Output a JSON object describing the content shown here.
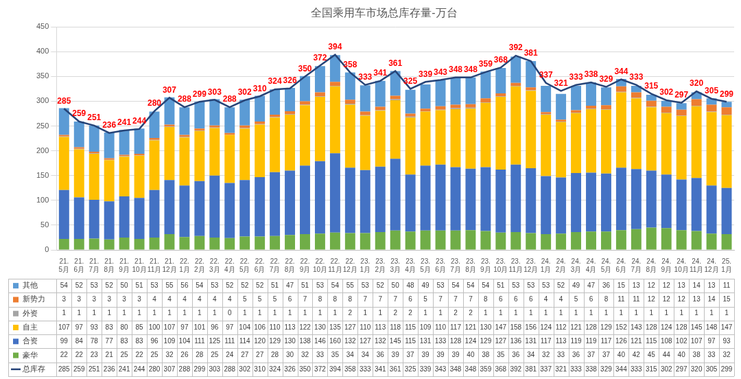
{
  "chart_data": {
    "type": "bar",
    "title": "全国乘用车市场总库存量-万台",
    "stacked": true,
    "grid": true,
    "categories": [
      "21.5月",
      "21.6月",
      "21.7月",
      "21.8月",
      "21.9月",
      "21.10月",
      "21.11月",
      "21.12月",
      "22.1月",
      "22.2月",
      "22.3月",
      "22.4月",
      "22.5月",
      "22.6月",
      "22.7月",
      "22.8月",
      "22.9月",
      "22.10月",
      "22.11月",
      "22.12月",
      "23.1月",
      "23.2月",
      "23.3月",
      "23.4月",
      "23.5月",
      "23.6月",
      "23.7月",
      "23.8月",
      "23.9月",
      "23.10月",
      "23.11月",
      "23.12月",
      "24.1月",
      "24.2月",
      "24.3月",
      "24.4月",
      "24.5月",
      "24.6月",
      "24.7月",
      "24.8月",
      "24.9月",
      "24.10月",
      "24.11月",
      "24.12月",
      "25.1月"
    ],
    "ylim": [
      0,
      450
    ],
    "yticks": [
      0,
      50,
      100,
      150,
      200,
      250,
      300,
      350,
      400,
      450
    ],
    "series": [
      {
        "name": "豪华",
        "color": "#70ad47",
        "values": [
          22,
          22,
          23,
          21,
          25,
          22,
          25,
          32,
          26,
          28,
          25,
          24,
          27,
          27,
          28,
          30,
          32,
          33,
          35,
          34,
          34,
          36,
          39,
          37,
          39,
          39,
          39,
          40,
          38,
          35,
          36,
          34,
          32,
          33,
          36,
          37,
          37,
          40,
          42,
          45,
          44,
          40,
          38,
          33,
          32
        ]
      },
      {
        "name": "合资",
        "color": "#4472c4",
        "values": [
          99,
          84,
          78,
          77,
          83,
          83,
          96,
          109,
          104,
          111,
          125,
          111,
          114,
          120,
          129,
          130,
          138,
          146,
          160,
          132,
          127,
          132,
          145,
          115,
          131,
          133,
          128,
          124,
          129,
          127,
          136,
          131,
          117,
          113,
          119,
          119,
          117,
          126,
          121,
          115,
          108,
          102,
          107,
          97,
          93
        ]
      },
      {
        "name": "自主",
        "color": "#ffc000",
        "values": [
          107,
          97,
          93,
          83,
          80,
          85,
          100,
          107,
          97,
          101,
          96,
          97,
          104,
          106,
          110,
          113,
          122,
          130,
          135,
          127,
          110,
          113,
          118,
          115,
          109,
          110,
          117,
          121,
          130,
          147,
          158,
          156,
          124,
          112,
          121,
          128,
          129,
          152,
          143,
          128,
          124,
          128,
          145,
          148,
          147
        ]
      },
      {
        "name": "外资",
        "color": "#a5a5a5",
        "values": [
          1,
          1,
          1,
          1,
          1,
          1,
          1,
          1,
          1,
          1,
          1,
          0,
          1,
          1,
          1,
          1,
          1,
          1,
          1,
          2,
          1,
          1,
          2,
          2,
          1,
          1,
          2,
          2,
          1,
          1,
          1,
          1,
          1,
          1,
          1,
          1,
          1,
          1,
          1,
          1,
          1,
          1,
          1,
          1,
          1
        ]
      },
      {
        "name": "新势力",
        "color": "#ed7d31",
        "values": [
          3,
          3,
          3,
          3,
          3,
          3,
          4,
          4,
          4,
          4,
          4,
          4,
          5,
          5,
          5,
          6,
          7,
          8,
          8,
          8,
          7,
          7,
          7,
          6,
          5,
          7,
          7,
          7,
          8,
          6,
          6,
          6,
          4,
          4,
          5,
          6,
          8,
          11,
          11,
          12,
          12,
          12,
          13,
          14,
          15
        ]
      },
      {
        "name": "其他",
        "color": "#5b9bd5",
        "values": [
          54,
          52,
          53,
          52,
          50,
          51,
          53,
          55,
          56,
          54,
          53,
          52,
          52,
          52,
          51,
          47,
          51,
          53,
          54,
          55,
          53,
          52,
          50,
          48,
          49,
          53,
          54,
          54,
          54,
          51,
          53,
          53,
          53,
          52,
          49,
          47,
          36,
          15,
          13,
          12,
          12,
          13,
          14,
          13,
          11
        ]
      },
      {
        "name": "总库存",
        "type": "line",
        "color": "#264478",
        "marker": "none",
        "data_labels": true,
        "values": [
          285,
          259,
          251,
          236,
          241,
          244,
          280,
          307,
          288,
          299,
          303,
          288,
          302,
          310,
          324,
          326,
          350,
          372,
          394,
          358,
          333,
          341,
          361,
          325,
          339,
          343,
          348,
          348,
          359,
          368,
          392,
          381,
          337,
          321,
          333,
          338,
          329,
          344,
          333,
          315,
          302,
          297,
          320,
          305,
          299
        ]
      }
    ]
  }
}
